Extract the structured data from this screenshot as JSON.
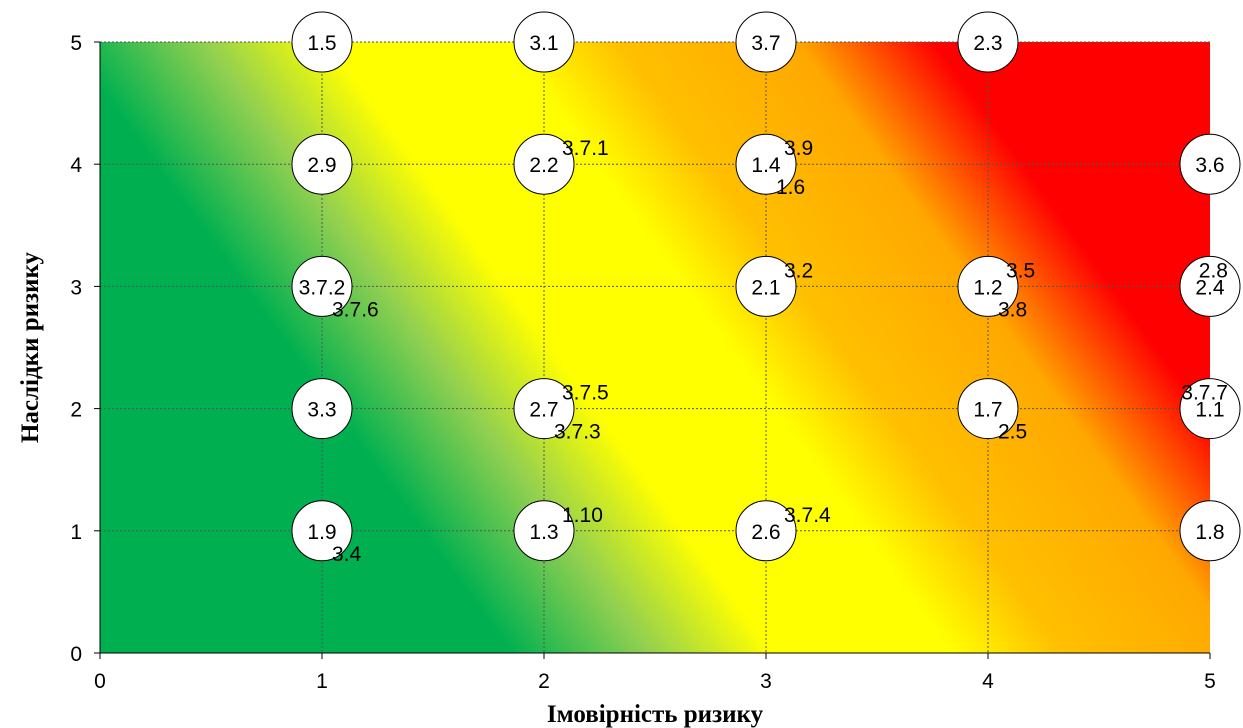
{
  "chart_data": {
    "type": "scatter",
    "title": "",
    "xlabel": "Імовірність ризику",
    "ylabel": "Наслідки ризику",
    "xlim": [
      0,
      5
    ],
    "ylim": [
      0,
      5
    ],
    "xticks": [
      "0",
      "1",
      "2",
      "3",
      "4",
      "5"
    ],
    "yticks": [
      "0",
      "1",
      "2",
      "3",
      "4",
      "5"
    ],
    "grid": true,
    "grid_style": "dotted",
    "background": "risk heat gradient from green (low probability, low impact) through yellow and orange to red (high probability, high impact)",
    "colors": {
      "green": "#00b050",
      "light_green": "#92d050",
      "yellow": "#ffff00",
      "orange": "#ffc000",
      "red": "#ff0000",
      "marker_fill": "#ffffff",
      "marker_stroke": "#000000"
    },
    "bubbles": [
      {
        "label": "1.5",
        "x": 1,
        "y": 5
      },
      {
        "label": "3.1",
        "x": 2,
        "y": 5
      },
      {
        "label": "3.7",
        "x": 3,
        "y": 5
      },
      {
        "label": "2.3",
        "x": 4,
        "y": 5
      },
      {
        "label": "2.9",
        "x": 1,
        "y": 4
      },
      {
        "label": "2.2",
        "x": 2,
        "y": 4
      },
      {
        "label": "1.4",
        "x": 3,
        "y": 4
      },
      {
        "label": "3.6",
        "x": 5,
        "y": 4
      },
      {
        "label": "3.7.2",
        "x": 1,
        "y": 3
      },
      {
        "label": "2.1",
        "x": 3,
        "y": 3
      },
      {
        "label": "1.2",
        "x": 4,
        "y": 3
      },
      {
        "label": "2.4",
        "x": 5,
        "y": 3
      },
      {
        "label": "3.3",
        "x": 1,
        "y": 2
      },
      {
        "label": "2.7",
        "x": 2,
        "y": 2
      },
      {
        "label": "1.7",
        "x": 4,
        "y": 2
      },
      {
        "label": "1.1",
        "x": 5,
        "y": 2
      },
      {
        "label": "1.9",
        "x": 1,
        "y": 1
      },
      {
        "label": "1.3",
        "x": 2,
        "y": 1
      },
      {
        "label": "2.6",
        "x": 3,
        "y": 1
      },
      {
        "label": "1.8",
        "x": 5,
        "y": 1
      }
    ],
    "points": [
      {
        "label": "3.7.1",
        "x": 2,
        "y": 4,
        "pos": "upper-right"
      },
      {
        "label": "3.9",
        "x": 3,
        "y": 4,
        "pos": "upper-right"
      },
      {
        "label": "1.6",
        "x": 3,
        "y": 4,
        "pos": "lower-right"
      },
      {
        "label": "3.7.6",
        "x": 1,
        "y": 3,
        "pos": "lower-right"
      },
      {
        "label": "3.2",
        "x": 3,
        "y": 3,
        "pos": "upper-right"
      },
      {
        "label": "3.5",
        "x": 4,
        "y": 3,
        "pos": "upper-right"
      },
      {
        "label": "3.8",
        "x": 4,
        "y": 3,
        "pos": "lower-right"
      },
      {
        "label": "2.8",
        "x": 5,
        "y": 3,
        "pos": "upper-left"
      },
      {
        "label": "3.7.5",
        "x": 2,
        "y": 2,
        "pos": "upper-right"
      },
      {
        "label": "3.7.3",
        "x": 2,
        "y": 2,
        "pos": "lower-right"
      },
      {
        "label": "3.7.7",
        "x": 5,
        "y": 2,
        "pos": "upper-left"
      },
      {
        "label": "2.5",
        "x": 4,
        "y": 2,
        "pos": "lower-right"
      },
      {
        "label": "1.10",
        "x": 2,
        "y": 1,
        "pos": "upper-right"
      },
      {
        "label": "3.7.4",
        "x": 3,
        "y": 1,
        "pos": "upper-right"
      },
      {
        "label": "3.4",
        "x": 1,
        "y": 1,
        "pos": "lower-right"
      }
    ]
  }
}
